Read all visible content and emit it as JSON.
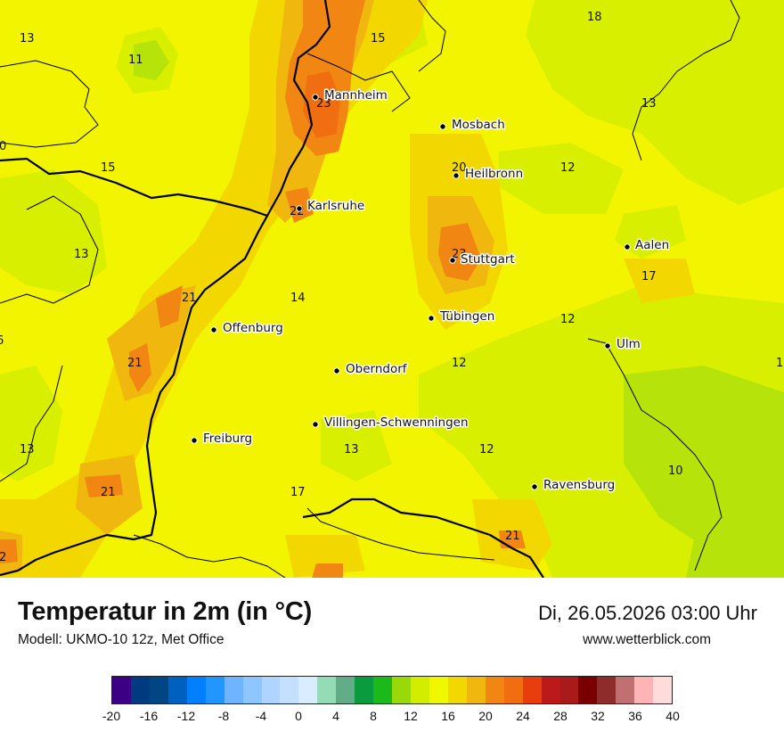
{
  "title": "Temperatur in 2m (in °C)",
  "model": "Modell: UKMO-10 12z, Met Office",
  "datetime": "Di, 26.05.2026 03:00 Uhr",
  "website": "www.wetterblick.com",
  "cities": [
    {
      "name": "Mannheim"
    },
    {
      "name": "Mosbach"
    },
    {
      "name": "Heilbronn"
    },
    {
      "name": "Karlsruhe"
    },
    {
      "name": "Aalen"
    },
    {
      "name": "Stuttgart"
    },
    {
      "name": "Tübingen"
    },
    {
      "name": "Offenburg"
    },
    {
      "name": "Ulm"
    },
    {
      "name": "Oberndorf"
    },
    {
      "name": "Villingen-Schwenningen"
    },
    {
      "name": "Freiburg"
    },
    {
      "name": "Ravensburg"
    }
  ],
  "isolines": [
    "13",
    "11",
    "15",
    "18",
    "23",
    "13",
    "0",
    "15",
    "20",
    "12",
    "22",
    "13",
    "23",
    "17",
    "21",
    "14",
    "12",
    "6",
    "21",
    "12",
    "1",
    "13",
    "13",
    "12",
    "10",
    "21",
    "17",
    "21",
    "2"
  ],
  "legend": {
    "colors": [
      "#3b0084",
      "#003a80",
      "#004584",
      "#0060bf",
      "#0080ff",
      "#2196ff",
      "#6fb4ff",
      "#8ec6ff",
      "#aed4ff",
      "#c5e0ff",
      "#daecff",
      "#93dcb6",
      "#62ad87",
      "#0b9b3f",
      "#1bba1a",
      "#99d90a",
      "#d2ed00",
      "#f0f800",
      "#f2d800",
      "#f0b80f",
      "#f18612",
      "#f06e0f",
      "#e83e0e",
      "#bb1a1a",
      "#a91a1a",
      "#7a0000",
      "#8e2b2b",
      "#c07070",
      "#ffb5b5",
      "#ffdcdc"
    ],
    "ticks": [
      "-20",
      "-16",
      "-12",
      "-8",
      "-4",
      "0",
      "4",
      "8",
      "12",
      "16",
      "20",
      "24",
      "28",
      "32",
      "36",
      "40"
    ]
  }
}
